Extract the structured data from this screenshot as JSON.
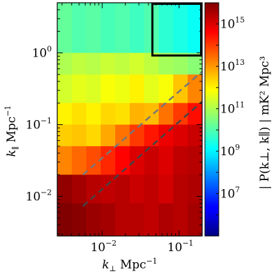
{
  "chart_data": {
    "type": "heatmap",
    "title": "",
    "xlabel": {
      "var": "k",
      "sub": "⊥",
      "unit_base": "Mpc",
      "unit_exp": "−1"
    },
    "ylabel": {
      "var": "k",
      "sub": "∥",
      "unit_base": "Mpc",
      "unit_exp": "−1"
    },
    "x_scale": "log",
    "y_scale": "log",
    "xlim": [
      0.0026,
      0.2
    ],
    "ylim": [
      0.0028,
      5.0
    ],
    "x_ticks": [
      {
        "value": 0.01,
        "base": "10",
        "exp": "−2"
      },
      {
        "value": 0.1,
        "base": "10",
        "exp": "−1"
      }
    ],
    "y_ticks": [
      {
        "value": 0.01,
        "base": "10",
        "exp": "−2"
      },
      {
        "value": 0.1,
        "base": "10",
        "exp": "−1"
      },
      {
        "value": 1.0,
        "base": "10",
        "exp": "0"
      }
    ],
    "colorbar": {
      "label": "| P(k⊥, k∥) | mK² Mpc³",
      "scale": "log",
      "range": [
        100000.0,
        1e+16
      ],
      "colormap": "jet",
      "ticks": [
        {
          "value": 10000000.0,
          "base": "10",
          "exp": "7"
        },
        {
          "value": 1000000000.0,
          "base": "10",
          "exp": "9"
        },
        {
          "value": 100000000000.0,
          "base": "10",
          "exp": "11"
        },
        {
          "value": 10000000000000.0,
          "base": "10",
          "exp": "13"
        },
        {
          "value": 1000000000000000.0,
          "base": "10",
          "exp": "15"
        }
      ]
    },
    "annotations": {
      "box": {
        "x": [
          0.045,
          0.2
        ],
        "y": [
          0.92,
          5.0
        ],
        "color": "#000000"
      },
      "lines": [
        {
          "name": "",
          "style": "dashed",
          "color": "#777777",
          "x": [
            0.0056,
            0.2
          ],
          "y": [
            0.02,
            0.55
          ]
        },
        {
          "name": "",
          "style": "dashed",
          "color": "#444444",
          "x": [
            0.0056,
            0.2
          ],
          "y": [
            0.0073,
            0.21
          ]
        }
      ]
    },
    "description_of_values": "Power is ~1e10 (cyan/green) at high k_par and low k_perp, rising to ~1e15-1e16 (red) in the wedge region at low k_par and high k_perp.",
    "rows": [
      {
        "k_par_range": [
          1.0,
          5.0
        ],
        "log10_power": [
          10.2,
          10.0,
          10.1,
          9.9,
          10.0,
          9.8,
          10.0,
          9.6,
          9.4,
          9.2
        ]
      },
      {
        "k_par_range": [
          0.5,
          1.0
        ],
        "log10_power": [
          11.0,
          11.2,
          11.1,
          11.3,
          11.2,
          11.4,
          11.2,
          10.9,
          10.8,
          10.6
        ]
      },
      {
        "k_par_range": [
          0.2,
          0.5
        ],
        "log10_power": [
          11.4,
          11.6,
          11.5,
          11.8,
          11.7,
          12.0,
          11.6,
          11.8,
          12.5,
          13.2
        ]
      },
      {
        "k_par_range": [
          0.1,
          0.2
        ],
        "log10_power": [
          12.0,
          12.2,
          12.0,
          12.3,
          12.2,
          12.7,
          12.6,
          13.4,
          14.0,
          14.5
        ]
      },
      {
        "k_par_range": [
          0.05,
          0.1
        ],
        "log10_power": [
          12.4,
          12.5,
          12.3,
          12.8,
          13.4,
          14.0,
          14.4,
          14.8,
          15.0,
          15.2
        ]
      },
      {
        "k_par_range": [
          0.02,
          0.05
        ],
        "log10_power": [
          13.2,
          13.5,
          13.8,
          14.2,
          14.6,
          15.0,
          15.2,
          15.0,
          15.3,
          15.4
        ]
      },
      {
        "k_par_range": [
          0.008,
          0.02
        ],
        "log10_power": [
          15.8,
          15.6,
          15.4,
          15.3,
          15.4,
          15.2,
          15.3,
          15.1,
          15.4,
          15.5
        ]
      },
      {
        "k_par_range": [
          0.0028,
          0.008
        ],
        "log10_power": [
          16.0,
          15.9,
          15.7,
          15.6,
          15.4,
          15.4,
          15.3,
          15.5,
          15.4,
          15.6
        ]
      }
    ]
  }
}
